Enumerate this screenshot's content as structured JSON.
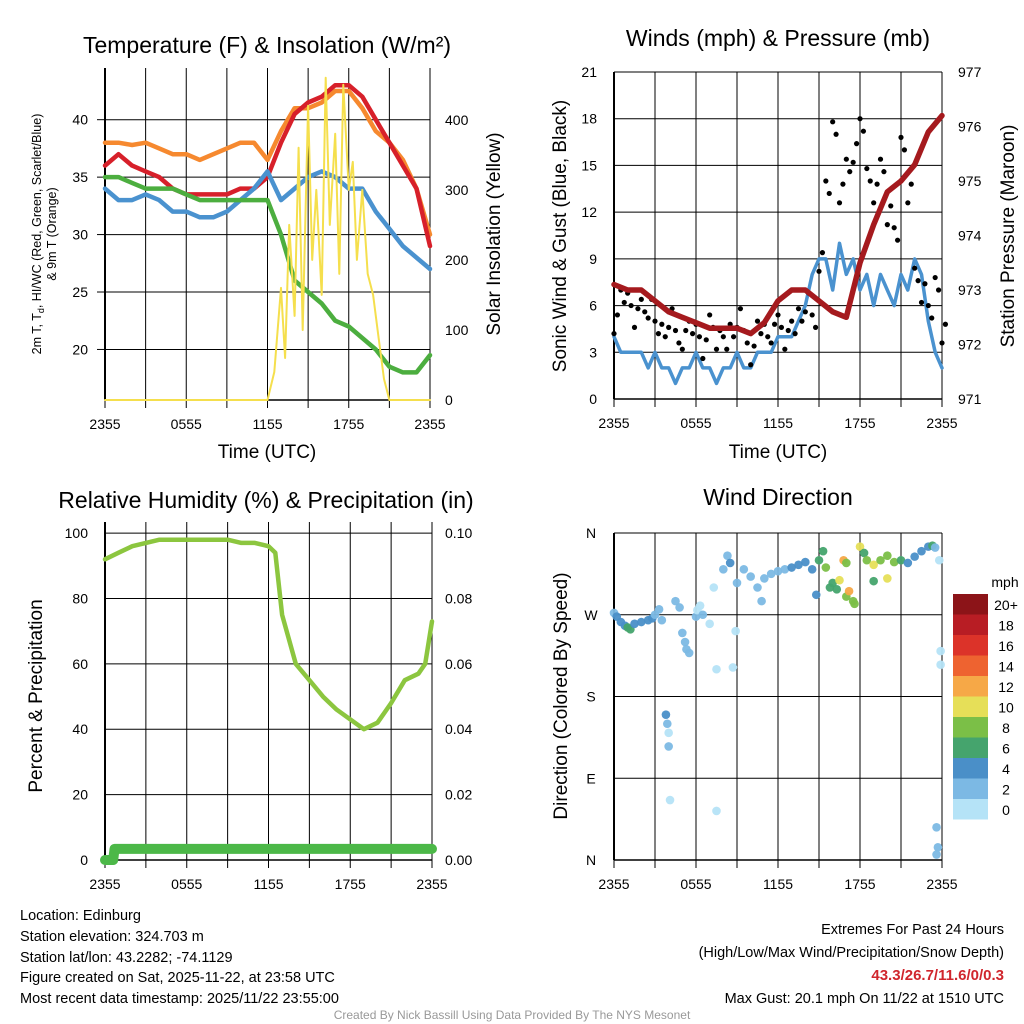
{
  "info": {
    "location": "Location: Edinburg",
    "elevation": "Station elevation: 324.703 m",
    "latlon": "Station lat/lon: 43.2282; -74.1129",
    "created": "Figure created on Sat, 2025-11-22, at 23:58 UTC",
    "recent": "Most recent data timestamp: 2025/11/22 23:55:00"
  },
  "extremes": {
    "title": "Extremes For Past 24 Hours",
    "subtitle": "(High/Low/Max Wind/Precipitation/Snow Depth)",
    "values": "43.3/26.7/11.6/0/0.3",
    "gust": "Max Gust: 20.1 mph On 11/22 at 1510 UTC"
  },
  "credit": "Created By Nick Bassill Using Data Provided By The NYS Mesonet",
  "colors": {
    "red": "#d7202a",
    "green": "#4cae3f",
    "blue": "#4a92cf",
    "orange": "#f6892f",
    "yellow": "#f5df4d",
    "maroon": "#a51a1e",
    "black": "#000000",
    "rh": "#8cc63f",
    "precip": "#4cb848"
  },
  "chart_data": [
    {
      "type": "line",
      "title": "Temperature (F) & Insolation (W/m²)",
      "xlabel": "Time (UTC)",
      "ylabel_parts": [
        "2m T, T",
        "d",
        ", HI/WC (Red, Green, Scarlet/Blue)",
        "& 9m T (Orange)"
      ],
      "y2label": "Solar Insolation (Yellow)",
      "xticks": [
        "2355",
        "0555",
        "1155",
        "1755",
        "2355"
      ],
      "xlim_hours": [
        0,
        24
      ],
      "ylim": [
        15.6,
        44.5
      ],
      "yticks": [
        20,
        25,
        30,
        35,
        40
      ],
      "y2lim": [
        0,
        474
      ],
      "y2ticks": [
        0,
        100,
        200,
        300,
        400
      ],
      "x_hours": [
        0,
        1,
        2,
        3,
        4,
        5,
        6,
        7,
        8,
        9,
        10,
        11,
        12,
        13,
        14,
        15,
        16,
        17,
        18,
        19,
        20,
        21,
        22,
        23,
        24
      ],
      "series": [
        {
          "name": "9m T",
          "color": "orange",
          "axis": "left",
          "values": [
            38,
            38,
            37.8,
            38,
            37.5,
            37,
            37,
            36.5,
            37,
            37.5,
            38,
            38,
            36.5,
            39,
            41,
            41,
            41.5,
            42.5,
            42.5,
            41,
            39,
            38,
            36.5,
            34,
            30
          ]
        },
        {
          "name": "2m T",
          "color": "red",
          "axis": "left",
          "values": [
            36,
            37,
            36,
            35.5,
            35,
            34,
            33.5,
            33.5,
            33.5,
            33.5,
            34,
            34,
            35,
            38,
            40.5,
            41.5,
            42,
            43,
            43,
            42,
            40,
            38,
            36,
            34,
            29
          ]
        },
        {
          "name": "HI/WC",
          "color": "blue",
          "axis": "left",
          "values": [
            34,
            33,
            33,
            33.5,
            33,
            32,
            32,
            31.5,
            31.5,
            32,
            33,
            34,
            35.5,
            33,
            34,
            35,
            35.5,
            35,
            34,
            34,
            32,
            30.5,
            29,
            28,
            27
          ]
        },
        {
          "name": "Td",
          "color": "green",
          "axis": "left",
          "values": [
            35,
            35,
            34.5,
            34,
            34,
            34,
            33.5,
            33,
            33,
            33,
            33,
            33,
            33,
            30,
            26,
            25,
            24,
            22.5,
            22,
            21,
            20,
            18.5,
            18,
            18,
            19.5
          ]
        }
      ],
      "insolation": {
        "x_hours": [
          0,
          12,
          12.5,
          13,
          13.3,
          13.6,
          14,
          14.3,
          14.6,
          15,
          15.3,
          15.6,
          16,
          16.3,
          16.6,
          17,
          17.3,
          17.6,
          18,
          18.3,
          18.6,
          19,
          19.4,
          19.8,
          20.2,
          20.6,
          21,
          24
        ],
        "values": [
          0,
          0,
          40,
          160,
          60,
          250,
          120,
          360,
          100,
          420,
          200,
          300,
          150,
          460,
          250,
          380,
          180,
          450,
          300,
          340,
          200,
          300,
          180,
          150,
          90,
          30,
          0,
          0
        ]
      }
    },
    {
      "type": "line",
      "title": "Winds (mph) & Pressure (mb)",
      "xlabel": "Time (UTC)",
      "ylabel": "Sonic Wind & Gust (Blue, Black)",
      "y2label": "Station Pressure (Maroon)",
      "xticks": [
        "2355",
        "0555",
        "1155",
        "1755",
        "2355"
      ],
      "ylim": [
        0,
        21
      ],
      "yticks": [
        0,
        3,
        6,
        9,
        12,
        15,
        18,
        21
      ],
      "y2lim": [
        971,
        977
      ],
      "y2ticks": [
        971,
        972,
        973,
        974,
        975,
        976,
        977
      ],
      "step_hours": 0.5,
      "wind": [
        4,
        3,
        3,
        3,
        3,
        2,
        3,
        2,
        2,
        1,
        2,
        2,
        3,
        2,
        2,
        1,
        2,
        2,
        3,
        2,
        2,
        3,
        3,
        3,
        4,
        4,
        4,
        5,
        6,
        8,
        9,
        9,
        7,
        10,
        8,
        9,
        7,
        8,
        6,
        8,
        7,
        6,
        8,
        7,
        9,
        8,
        5,
        3,
        2
      ],
      "gust": [
        5,
        7,
        6,
        5,
        6,
        6,
        5,
        4,
        5,
        4,
        4,
        5,
        4,
        3,
        5,
        4,
        4,
        4,
        5,
        4,
        3,
        5,
        4,
        4,
        5,
        4,
        5,
        5,
        6,
        5,
        9,
        14,
        17,
        13,
        15,
        16,
        18,
        14,
        13,
        15,
        12,
        11,
        16,
        13,
        8,
        7,
        6,
        7,
        4
      ],
      "pressure_hours": [
        0,
        1,
        2,
        3,
        4,
        5,
        6,
        7,
        8,
        9,
        10,
        11,
        12,
        13,
        14,
        15,
        16,
        17,
        18,
        19,
        20,
        21,
        22,
        23,
        24
      ],
      "pressure": [
        973.1,
        973.0,
        973.0,
        972.8,
        972.6,
        972.5,
        972.4,
        972.3,
        972.3,
        972.3,
        972.2,
        972.4,
        972.8,
        973.0,
        973.0,
        972.8,
        972.6,
        972.5,
        973.5,
        974.2,
        974.8,
        975.0,
        975.3,
        975.9,
        976.2
      ]
    },
    {
      "type": "line",
      "title": "Relative Humidity (%) & Precipitation (in)",
      "ylabel": "Percent & Precipitation",
      "xticks": [
        "2355",
        "0555",
        "1155",
        "1755",
        "2355"
      ],
      "ylim": [
        0,
        103.4
      ],
      "yticks": [
        0,
        20,
        40,
        60,
        80,
        100
      ],
      "y2ticks": [
        "0.00",
        "0.02",
        "0.04",
        "0.06",
        "0.08",
        "0.10"
      ],
      "x_hours": [
        0,
        1,
        2,
        3,
        4,
        5,
        6,
        7,
        8,
        9,
        10,
        11,
        12,
        12.5,
        13,
        14,
        15,
        16,
        17,
        18,
        19,
        20,
        21,
        22,
        23,
        23.5,
        24
      ],
      "rh": [
        92,
        94,
        96,
        97,
        98,
        98,
        98,
        98,
        98,
        98,
        97,
        97,
        96,
        94,
        75,
        60,
        55,
        50,
        46,
        43,
        40,
        42,
        48,
        55,
        57,
        60,
        73
      ],
      "precip_hours": [
        0,
        0.6,
        0.7,
        24
      ],
      "precip_in": [
        0,
        0,
        0.0034,
        0.0034
      ]
    },
    {
      "type": "scatter",
      "title": "Wind Direction",
      "ylabel": "Direction (Colored By Speed)",
      "xticks": [
        "2355",
        "0555",
        "1155",
        "1755",
        "2355"
      ],
      "yticks": [
        "N",
        "E",
        "S",
        "W",
        "N"
      ],
      "ylim_deg": [
        0,
        360
      ],
      "colorbar": {
        "title": "mph",
        "labels": [
          "0",
          "2",
          "4",
          "6",
          "8",
          "10",
          "12",
          "14",
          "16",
          "18",
          "20+"
        ],
        "colors": [
          "#b5e3f7",
          "#7cb9e4",
          "#4a8fc8",
          "#45a46d",
          "#7bbf47",
          "#e6df58",
          "#f6a847",
          "#ee6330",
          "#dc3329",
          "#b81d24",
          "#8c1418"
        ]
      },
      "points_hour_dir_speed": [
        [
          0,
          272,
          3
        ],
        [
          0.2,
          268,
          4
        ],
        [
          0.5,
          262,
          4
        ],
        [
          0.8,
          258,
          5
        ],
        [
          1,
          256,
          6
        ],
        [
          1.2,
          254,
          6
        ],
        [
          1.5,
          260,
          4
        ],
        [
          2,
          262,
          4
        ],
        [
          2.5,
          264,
          4
        ],
        [
          2.8,
          266,
          4
        ],
        [
          3,
          270,
          3
        ],
        [
          3.3,
          276,
          3
        ],
        [
          3.5,
          264,
          3
        ],
        [
          3.8,
          160,
          4
        ],
        [
          3.9,
          150,
          3
        ],
        [
          4,
          140,
          1
        ],
        [
          4,
          125,
          3
        ],
        [
          4.1,
          66,
          1
        ],
        [
          4.5,
          285,
          2
        ],
        [
          4.8,
          278,
          2
        ],
        [
          5,
          250,
          3
        ],
        [
          5.2,
          240,
          2
        ],
        [
          5.3,
          232,
          2
        ],
        [
          5.5,
          228,
          2
        ],
        [
          6,
          268,
          2
        ],
        [
          6.1,
          275,
          1
        ],
        [
          6.3,
          280,
          1
        ],
        [
          6.5,
          270,
          2
        ],
        [
          7,
          260,
          1
        ],
        [
          7.3,
          300,
          1
        ],
        [
          7.5,
          210,
          1
        ],
        [
          7.5,
          54,
          1
        ],
        [
          8,
          320,
          2
        ],
        [
          8.3,
          335,
          2
        ],
        [
          8.5,
          327,
          4
        ],
        [
          8.7,
          212,
          1
        ],
        [
          8.9,
          252,
          1
        ],
        [
          9,
          305,
          2
        ],
        [
          9.5,
          320,
          2
        ],
        [
          10,
          312,
          2
        ],
        [
          10.5,
          300,
          2
        ],
        [
          10.8,
          285,
          2
        ],
        [
          11,
          310,
          2
        ],
        [
          11.5,
          315,
          2
        ],
        [
          12,
          318,
          3
        ],
        [
          12.5,
          320,
          3
        ],
        [
          13,
          322,
          4
        ],
        [
          13.5,
          325,
          4
        ],
        [
          14,
          328,
          4
        ],
        [
          14.5,
          320,
          5
        ],
        [
          14.8,
          292,
          4
        ],
        [
          15,
          330,
          6
        ],
        [
          15.3,
          340,
          6
        ],
        [
          15.5,
          322,
          8
        ],
        [
          15.8,
          300,
          6
        ],
        [
          16,
          305,
          7
        ],
        [
          16.3,
          298,
          6
        ],
        [
          16.5,
          308,
          10
        ],
        [
          16.8,
          330,
          12
        ],
        [
          17,
          327,
          8
        ],
        [
          17,
          290,
          8
        ],
        [
          17.2,
          296,
          12
        ],
        [
          17.5,
          285,
          8
        ],
        [
          17.6,
          282,
          8
        ],
        [
          18,
          345,
          10
        ],
        [
          18.3,
          338,
          7
        ],
        [
          18.5,
          330,
          8
        ],
        [
          19,
          325,
          10
        ],
        [
          19,
          307,
          6
        ],
        [
          19.5,
          330,
          8
        ],
        [
          20,
          335,
          9
        ],
        [
          20,
          310,
          10
        ],
        [
          20.5,
          328,
          8
        ],
        [
          21,
          330,
          7
        ],
        [
          21.5,
          327,
          5
        ],
        [
          22,
          334,
          4
        ],
        [
          22.5,
          340,
          4
        ],
        [
          23,
          345,
          4
        ],
        [
          23.3,
          346,
          6
        ],
        [
          23.5,
          344,
          2
        ],
        [
          23.8,
          330,
          1
        ],
        [
          23.9,
          230,
          1
        ],
        [
          23.9,
          215,
          1
        ],
        [
          23.6,
          36,
          3
        ],
        [
          23.7,
          14,
          3
        ],
        [
          23.6,
          6,
          3
        ]
      ]
    }
  ]
}
